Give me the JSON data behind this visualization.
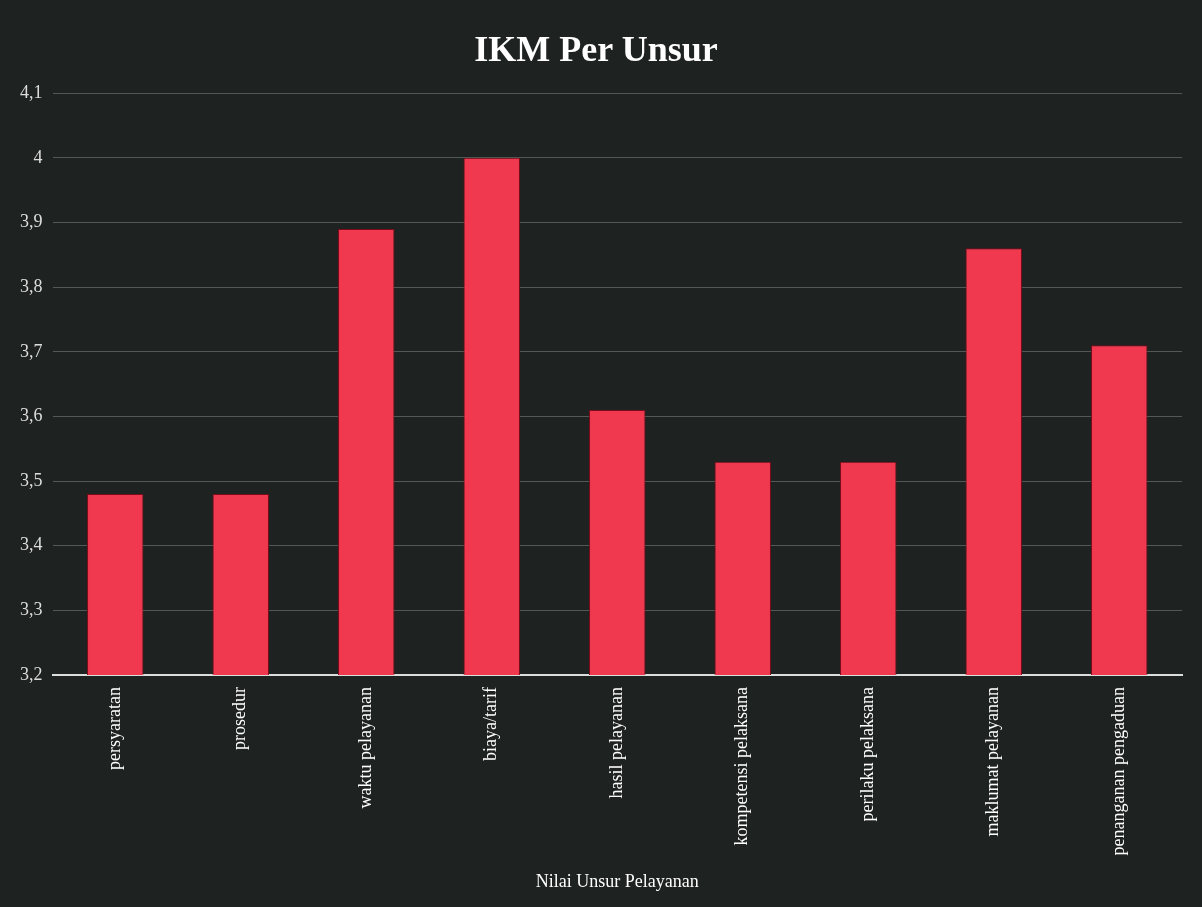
{
  "chart_data": {
    "type": "bar",
    "title": "IKM Per Unsur",
    "xlabel": "Nilai Unsur Pelayanan",
    "categories": [
      "persyaratan",
      "prosedur",
      "waktu pelayanan",
      "biaya/tarif",
      "hasil pelayanan",
      "kompetensi pelaksana",
      "perilaku pelaksana",
      "maklumat pelayanan",
      "penanganan pengaduan"
    ],
    "values": [
      3.48,
      3.48,
      3.89,
      4.0,
      3.61,
      3.53,
      3.53,
      3.86,
      3.71
    ],
    "color": "#f0384f",
    "ylim": [
      3.2,
      4.1
    ],
    "yticks": [
      {
        "value": 3.2,
        "label": "3,2"
      },
      {
        "value": 3.3,
        "label": "3,3"
      },
      {
        "value": 3.4,
        "label": "3,4"
      },
      {
        "value": 3.5,
        "label": "3,5"
      },
      {
        "value": 3.6,
        "label": "3,6"
      },
      {
        "value": 3.7,
        "label": "3,7"
      },
      {
        "value": 3.8,
        "label": "3,8"
      },
      {
        "value": 3.9,
        "label": "3,9"
      },
      4,
      {
        "value": 4.1,
        "label": "4,1"
      }
    ],
    "grid": "y",
    "legend": false
  }
}
